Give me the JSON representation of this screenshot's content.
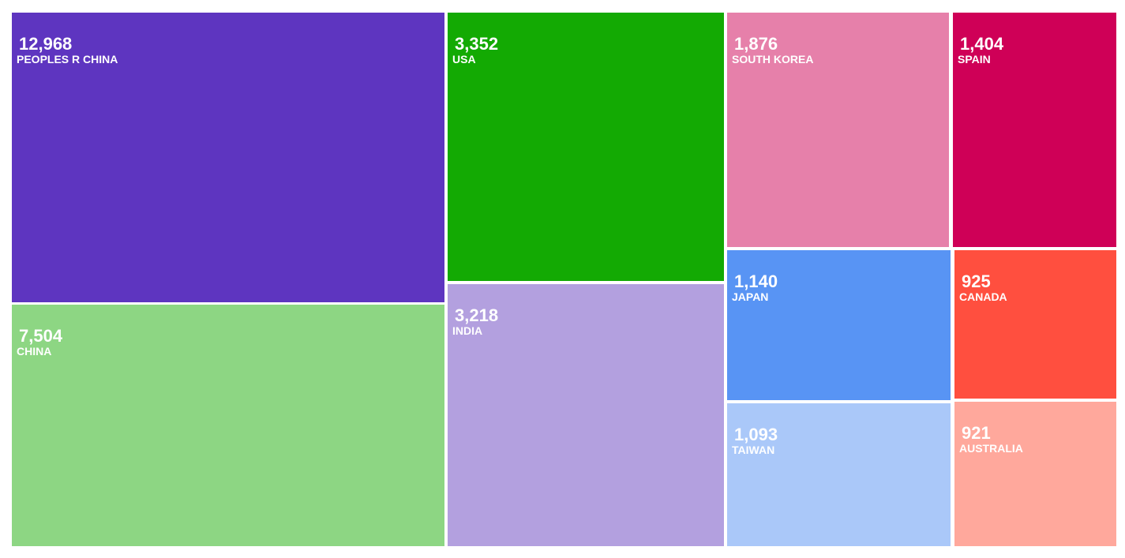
{
  "chart_data": {
    "type": "treemap",
    "categories": [
      "PEOPLES R CHINA",
      "CHINA",
      "USA",
      "INDIA",
      "SOUTH KOREA",
      "JAPAN",
      "TAIWAN",
      "SPAIN",
      "CANADA",
      "AUSTRALIA"
    ],
    "values": [
      12968,
      7504,
      3352,
      3218,
      1876,
      1140,
      1093,
      1404,
      925,
      921
    ],
    "value_labels": [
      "12,968",
      "7,504",
      "3,352",
      "3,218",
      "1,876",
      "1,140",
      "1,093",
      "1,404",
      "925",
      "921"
    ],
    "colors": [
      "#5e35c0",
      "#8dd683",
      "#13aa03",
      "#b3a0df",
      "#e680aa",
      "#5894f4",
      "#aac8f9",
      "#cf0057",
      "#ff4f3f",
      "#ffa89c"
    ]
  }
}
